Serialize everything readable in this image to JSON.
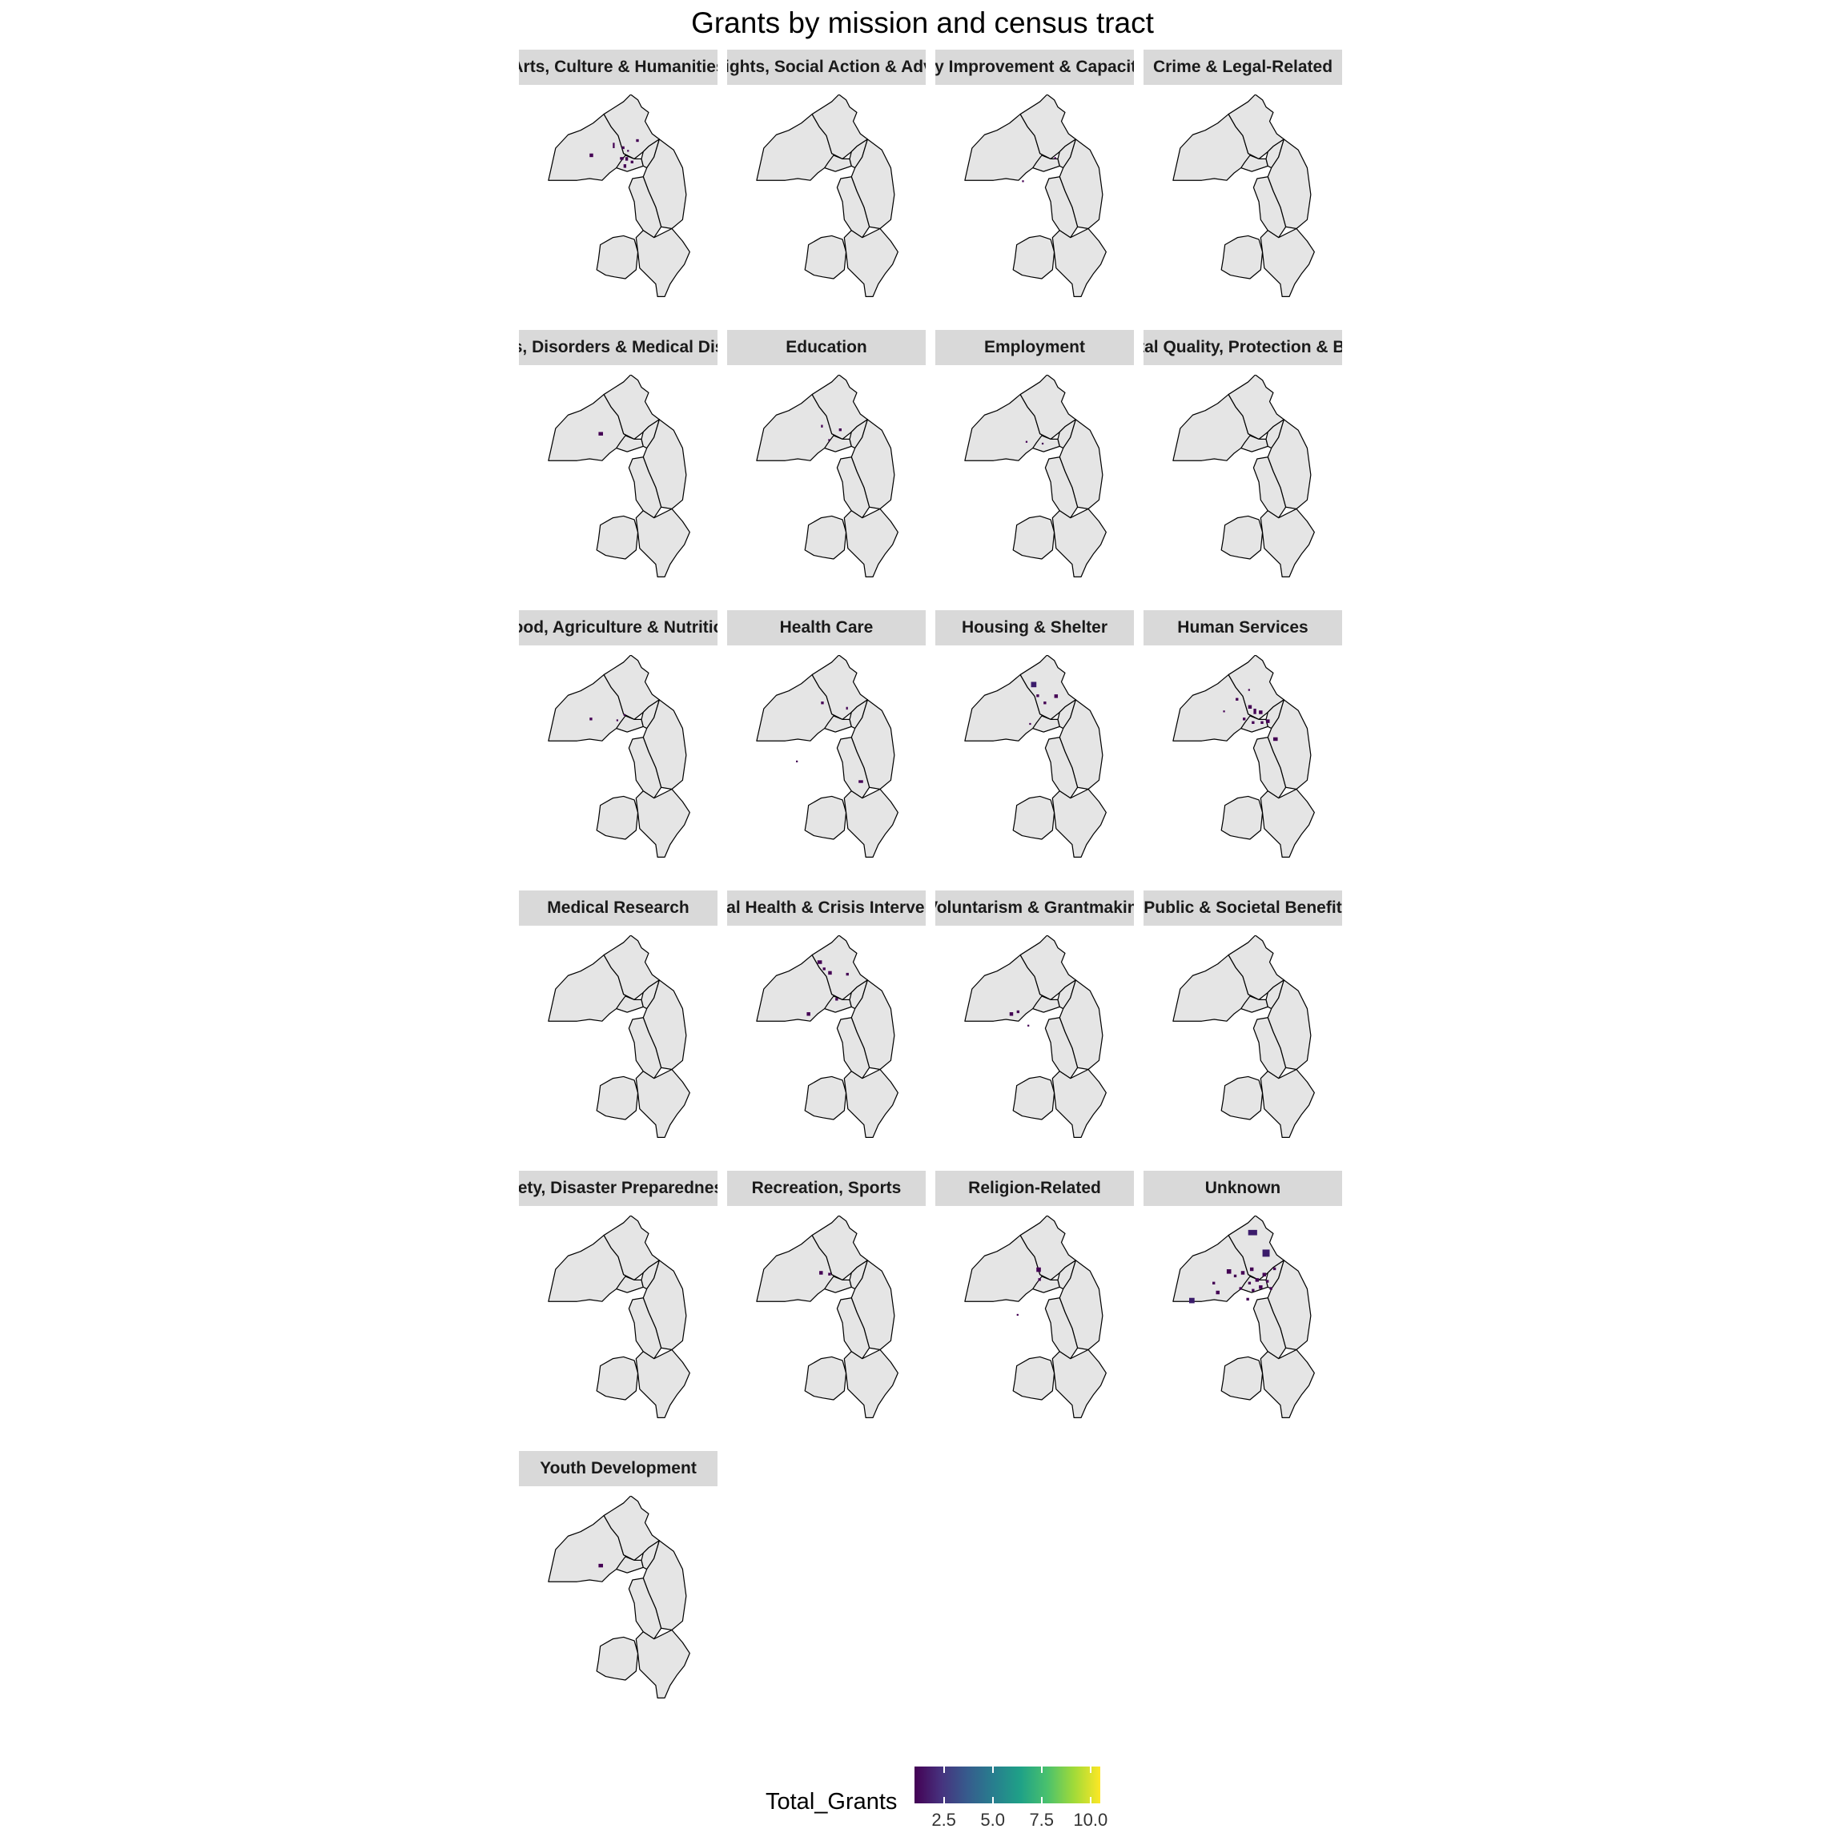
{
  "title": "Grants by mission and census tract",
  "panels": [
    {
      "label": "Arts, Culture & Humanities",
      "clip": "left"
    },
    {
      "label": "Civil Rights, Social Action & Advocacy",
      "clip": "both"
    },
    {
      "label": "Community Improvement & Capacity Building",
      "clip": "both"
    },
    {
      "label": "Crime & Legal-Related",
      "clip": "none"
    },
    {
      "label": "Diseases, Disorders & Medical Disciplines",
      "clip": "both"
    },
    {
      "label": "Education",
      "clip": "none"
    },
    {
      "label": "Employment",
      "clip": "none"
    },
    {
      "label": "Environmental Quality, Protection & Beautification",
      "clip": "both"
    },
    {
      "label": "Food, Agriculture & Nutrition",
      "clip": "both"
    },
    {
      "label": "Health Care",
      "clip": "none"
    },
    {
      "label": "Housing & Shelter",
      "clip": "none"
    },
    {
      "label": "Human Services",
      "clip": "none"
    },
    {
      "label": "Medical Research",
      "clip": "none"
    },
    {
      "label": "Mental Health & Crisis Intervention",
      "clip": "both"
    },
    {
      "label": "Philanthropy, Voluntarism & Grantmaking Foundations",
      "clip": "both"
    },
    {
      "label": "Public & Societal Benefit",
      "clip": "none"
    },
    {
      "label": "Public Safety, Disaster Preparedness & Relief",
      "clip": "both"
    },
    {
      "label": "Recreation, Sports",
      "clip": "none"
    },
    {
      "label": "Religion-Related",
      "clip": "none"
    },
    {
      "label": "Unknown",
      "clip": "none"
    },
    {
      "label": "Youth Development",
      "clip": "none"
    }
  ],
  "legend": {
    "title": "Total_Grants",
    "range": [
      1,
      10.5
    ],
    "ticks": [
      {
        "value": 2.5,
        "label": "2.5"
      },
      {
        "value": 5.0,
        "label": "5.0"
      },
      {
        "value": 7.5,
        "label": "7.5"
      },
      {
        "value": 10.0,
        "label": "10.0"
      }
    ],
    "colormap": "viridis",
    "colors": [
      "#440154",
      "#46327e",
      "#365c8d",
      "#277f8e",
      "#1fa187",
      "#4ac16d",
      "#a0da39",
      "#fde725"
    ]
  },
  "colors": {
    "map_fill": "#e5e5e5",
    "map_border": "#000000",
    "strip_fill": "#d9d9d9",
    "low_value": "#440154",
    "mid_value": "#3b1c6b"
  }
}
